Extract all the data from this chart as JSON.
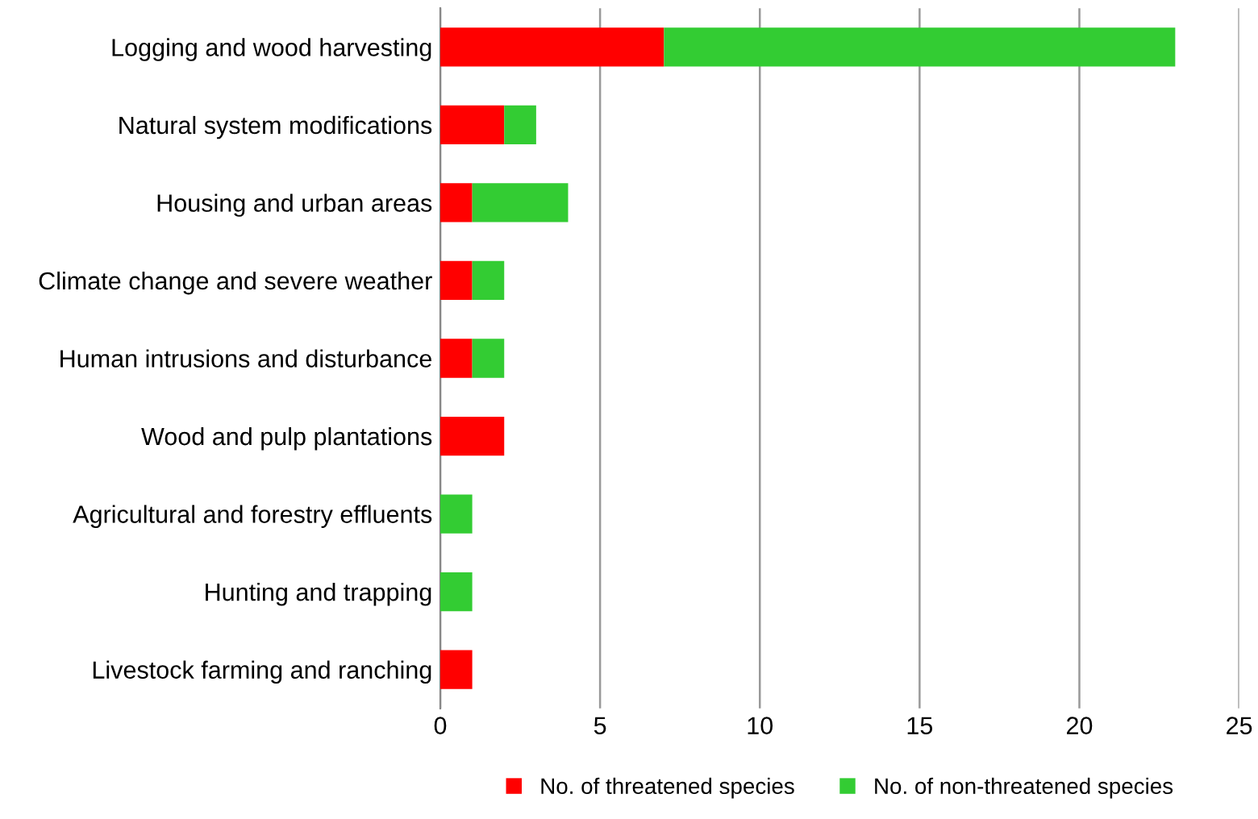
{
  "chart_data": {
    "type": "bar",
    "orientation": "horizontal",
    "stacked": true,
    "categories": [
      "Logging and wood harvesting",
      "Natural system modifications",
      "Housing and urban areas",
      "Climate change and severe weather",
      "Human intrusions and disturbance",
      "Wood and pulp plantations",
      "Agricultural and forestry effluents",
      "Hunting and trapping",
      "Livestock farming and ranching"
    ],
    "series": [
      {
        "name": "No. of threatened species",
        "color": "#ff0000",
        "values": [
          7,
          2,
          1,
          1,
          1,
          2,
          0,
          0,
          1
        ]
      },
      {
        "name": "No. of non-threatened species",
        "color": "#33cc33",
        "values": [
          16,
          1,
          3,
          1,
          1,
          0,
          1,
          1,
          0
        ]
      }
    ],
    "xlim": [
      0,
      25
    ],
    "xticks": [
      0,
      5,
      10,
      15,
      20,
      25
    ],
    "grid": "x",
    "legend": "bottom"
  }
}
